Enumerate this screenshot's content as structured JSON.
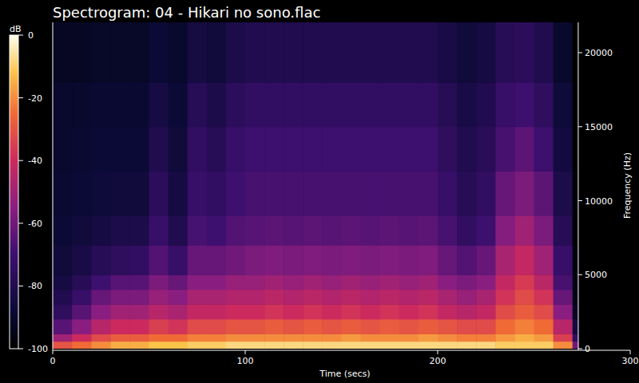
{
  "chart_data": {
    "type": "heatmap",
    "title": "Spectrogram: 04 - Hikari no sono.flac",
    "x_label": "Time (secs)",
    "y_label": "Frequency (Hz)",
    "xlim": [
      0,
      300
    ],
    "xticks": [
      0,
      100,
      200,
      300
    ],
    "ylim": [
      0,
      22050
    ],
    "yticks": [
      0,
      5000,
      10000,
      15000,
      20000
    ],
    "time_bins": [
      0,
      10,
      20,
      30,
      40,
      50,
      60,
      70,
      80,
      90,
      100,
      110,
      120,
      130,
      140,
      150,
      160,
      170,
      180,
      190,
      200,
      210,
      220,
      230,
      240,
      250,
      260,
      270,
      273
    ],
    "freq_bins": [
      0,
      500,
      1000,
      2000,
      3000,
      4000,
      5000,
      7000,
      9000,
      12000,
      15000,
      18000,
      22050
    ],
    "cells": [
      [
        -30,
        -25,
        -20,
        -15,
        -15,
        -12,
        -12,
        -10,
        -10,
        -8,
        -8,
        -8,
        -8,
        -8,
        -8,
        -8,
        -8,
        -8,
        -8,
        -8,
        -8,
        -8,
        -8,
        -10,
        -10,
        -10,
        -20,
        -60
      ],
      [
        -50,
        -40,
        -32,
        -28,
        -28,
        -25,
        -25,
        -22,
        -22,
        -20,
        -20,
        -20,
        -20,
        -20,
        -20,
        -18,
        -20,
        -20,
        -20,
        -18,
        -20,
        -22,
        -22,
        -18,
        -15,
        -18,
        -35,
        -75
      ],
      [
        -65,
        -55,
        -45,
        -40,
        -40,
        -35,
        -38,
        -32,
        -32,
        -30,
        -30,
        -28,
        -30,
        -28,
        -30,
        -28,
        -30,
        -28,
        -30,
        -28,
        -30,
        -32,
        -32,
        -25,
        -22,
        -25,
        -45,
        -85
      ],
      [
        -75,
        -65,
        -55,
        -50,
        -50,
        -45,
        -48,
        -42,
        -42,
        -40,
        -40,
        -38,
        -40,
        -38,
        -40,
        -38,
        -40,
        -38,
        -40,
        -38,
        -42,
        -45,
        -42,
        -32,
        -28,
        -32,
        -55,
        -92
      ],
      [
        -80,
        -72,
        -62,
        -58,
        -58,
        -52,
        -55,
        -48,
        -48,
        -46,
        -46,
        -44,
        -46,
        -44,
        -46,
        -44,
        -46,
        -44,
        -46,
        -44,
        -48,
        -52,
        -48,
        -38,
        -32,
        -38,
        -62,
        -95
      ],
      [
        -84,
        -78,
        -70,
        -65,
        -65,
        -58,
        -62,
        -55,
        -55,
        -52,
        -52,
        -50,
        -52,
        -50,
        -52,
        -50,
        -52,
        -50,
        -52,
        -50,
        -55,
        -58,
        -55,
        -42,
        -36,
        -44,
        -68,
        -96
      ],
      [
        -86,
        -83,
        -78,
        -75,
        -74,
        -66,
        -72,
        -62,
        -62,
        -60,
        -58,
        -57,
        -58,
        -57,
        -58,
        -57,
        -58,
        -57,
        -58,
        -57,
        -62,
        -66,
        -62,
        -48,
        -42,
        -50,
        -72,
        -97
      ],
      [
        -88,
        -86,
        -84,
        -82,
        -82,
        -72,
        -80,
        -68,
        -70,
        -66,
        -65,
        -64,
        -65,
        -64,
        -65,
        -64,
        -65,
        -64,
        -65,
        -64,
        -68,
        -74,
        -70,
        -56,
        -50,
        -58,
        -78,
        -98
      ],
      [
        -89,
        -88,
        -87,
        -86,
        -86,
        -76,
        -84,
        -72,
        -74,
        -70,
        -68,
        -68,
        -68,
        -68,
        -68,
        -68,
        -68,
        -68,
        -68,
        -68,
        -72,
        -78,
        -74,
        -62,
        -58,
        -64,
        -82,
        -98
      ],
      [
        -90,
        -89,
        -88,
        -88,
        -88,
        -80,
        -86,
        -74,
        -78,
        -72,
        -70,
        -70,
        -70,
        -70,
        -70,
        -70,
        -70,
        -70,
        -70,
        -70,
        -75,
        -80,
        -77,
        -68,
        -64,
        -70,
        -85,
        -99
      ],
      [
        -90,
        -90,
        -89,
        -89,
        -89,
        -84,
        -88,
        -78,
        -82,
        -76,
        -74,
        -74,
        -74,
        -74,
        -74,
        -74,
        -74,
        -74,
        -74,
        -74,
        -78,
        -83,
        -80,
        -72,
        -70,
        -75,
        -87,
        -99
      ],
      [
        -92,
        -92,
        -91,
        -91,
        -91,
        -88,
        -90,
        -84,
        -86,
        -82,
        -80,
        -80,
        -80,
        -80,
        -80,
        -80,
        -80,
        -80,
        -80,
        -80,
        -83,
        -86,
        -84,
        -78,
        -76,
        -80,
        -90,
        -100
      ]
    ],
    "colorbar": {
      "label": "dB",
      "range": [
        -100,
        0
      ],
      "ticks": [
        0,
        -20,
        -40,
        -60,
        -80,
        -100
      ]
    }
  }
}
